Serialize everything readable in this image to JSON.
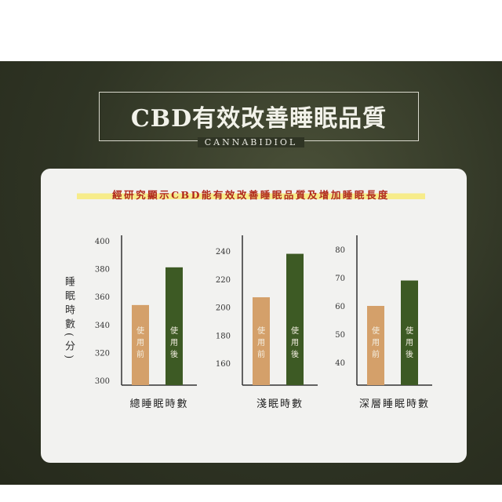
{
  "title": "CBD有效改善睡眠品質",
  "subtitle": "CANNABIDIOL",
  "headline": "經研究顯示CBD能有效改善睡眠品質及增加睡眠長度",
  "colors": {
    "before": "#d4a06a",
    "after": "#3d5a24",
    "background": "#2f3424"
  },
  "chart_data": [
    {
      "type": "bar",
      "title": "總睡眠時數",
      "ylabel": "睡眠時數(分)",
      "ylim": [
        300,
        400
      ],
      "ticks": [
        300,
        320,
        340,
        360,
        380,
        400
      ],
      "categories": [
        "使用前",
        "使用後"
      ],
      "values": [
        354,
        381
      ]
    },
    {
      "type": "bar",
      "title": "淺眠時數",
      "ylabel": "",
      "ylim": [
        150,
        250
      ],
      "ticks": [
        160,
        180,
        200,
        220,
        240
      ],
      "categories": [
        "使用前",
        "使用後"
      ],
      "values": [
        207,
        238
      ]
    },
    {
      "type": "bar",
      "title": "深層睡眠時數",
      "ylabel": "",
      "ylim": [
        35,
        85
      ],
      "ticks": [
        40,
        50,
        60,
        70,
        80
      ],
      "categories": [
        "使用前",
        "使用後"
      ],
      "values": [
        60,
        69
      ]
    }
  ]
}
